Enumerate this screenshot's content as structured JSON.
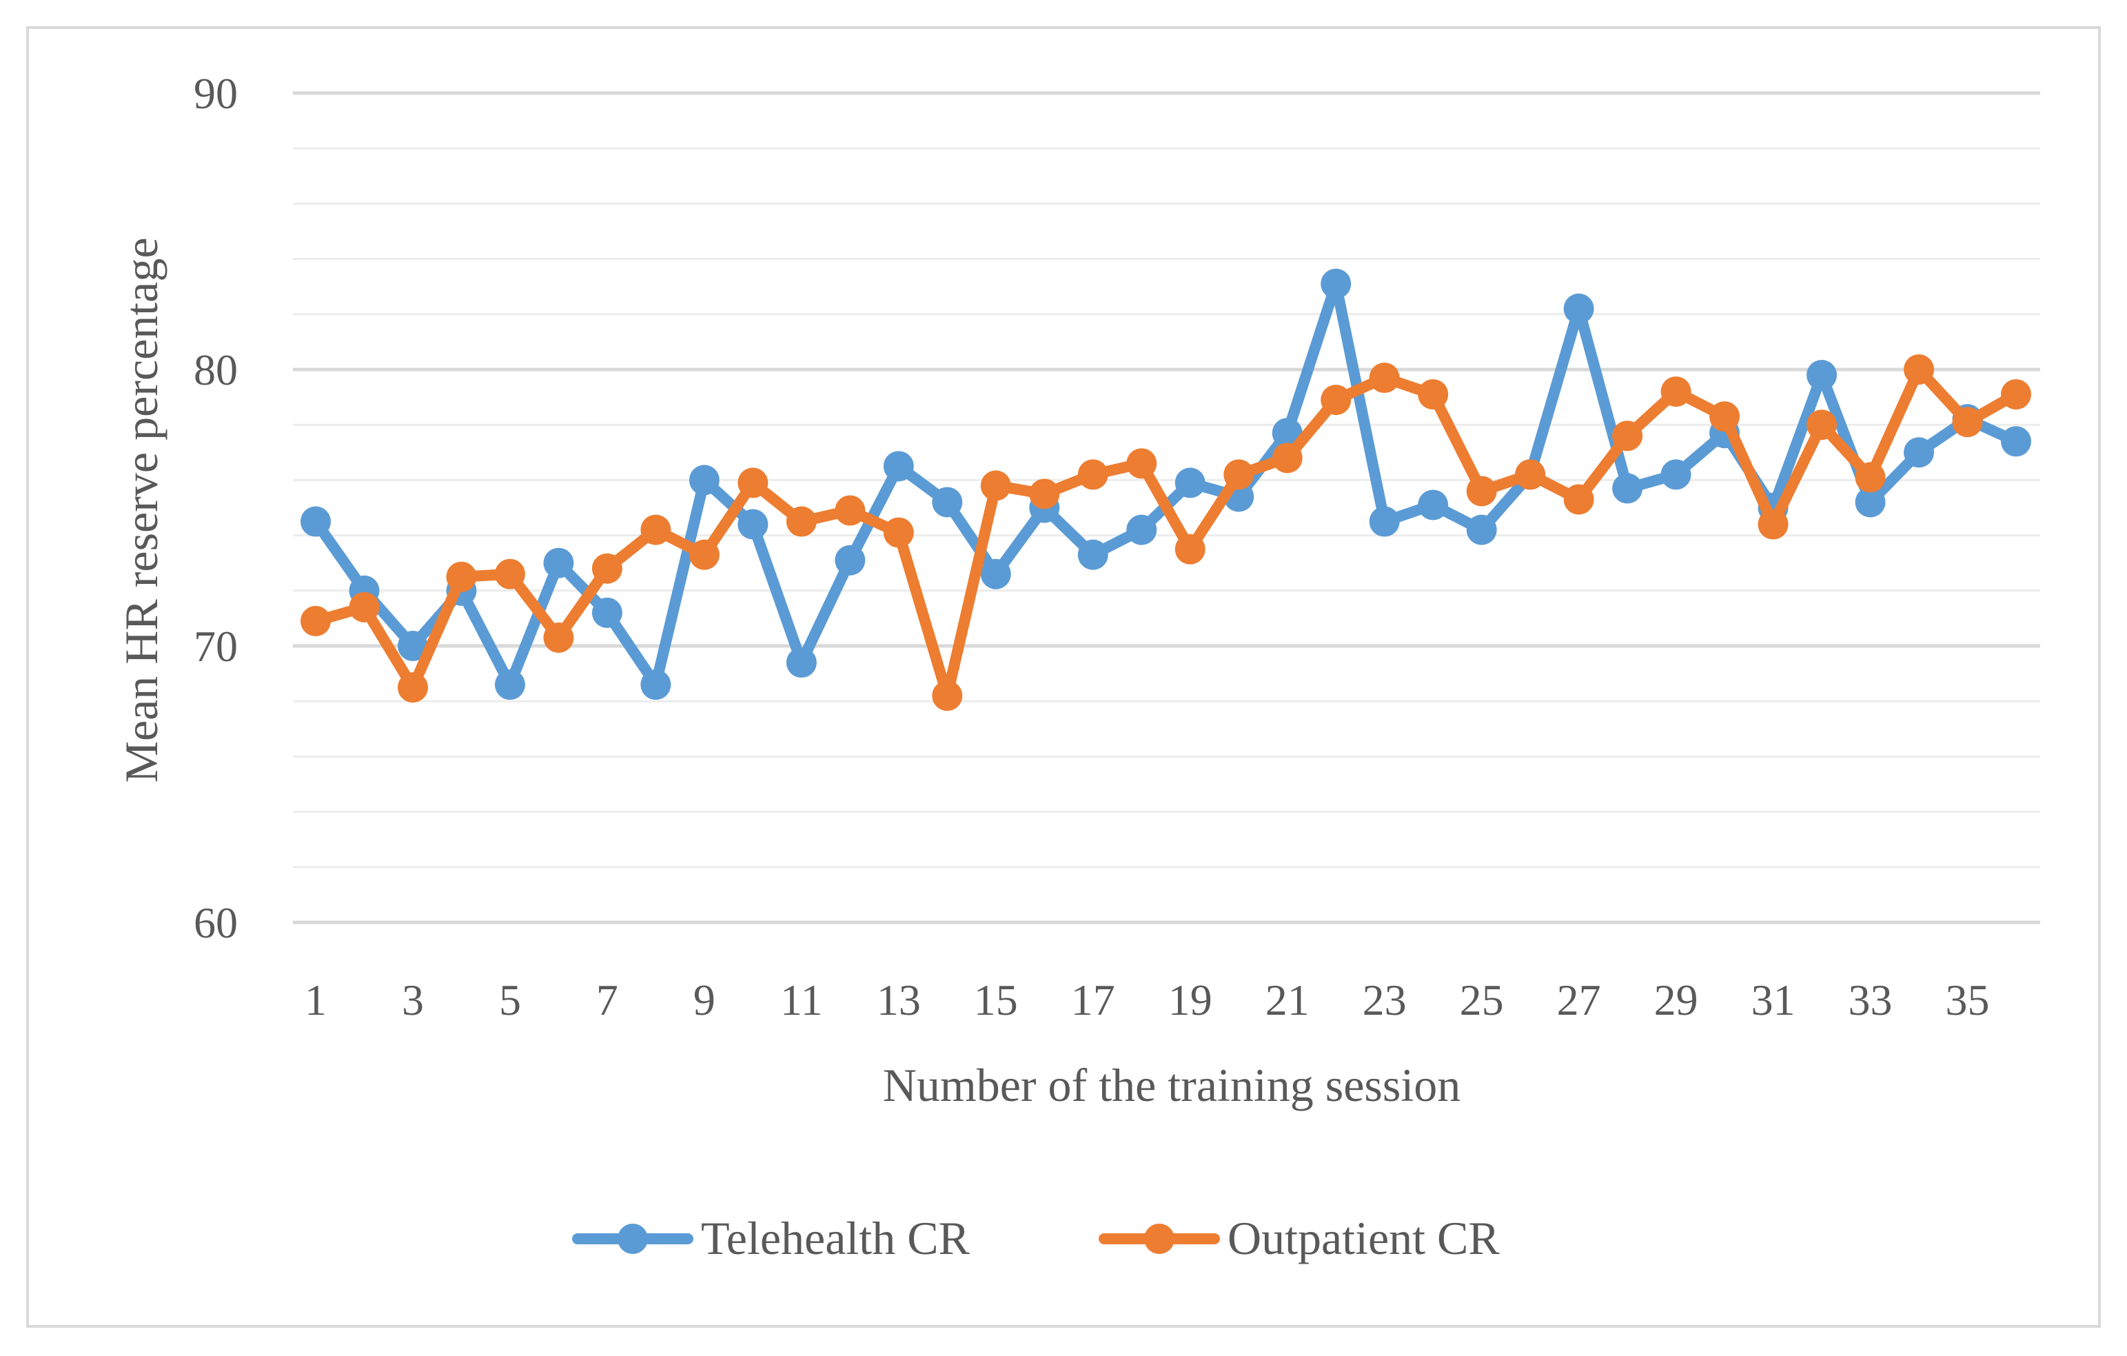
{
  "chart_data": {
    "type": "line",
    "title": "",
    "xlabel": "Number of the training session",
    "ylabel": "Mean HR reserve percentage",
    "ylim": [
      60,
      90
    ],
    "y_major_ticks": [
      60,
      70,
      80,
      90
    ],
    "y_minor_step": 2,
    "x": [
      1,
      2,
      3,
      4,
      5,
      6,
      7,
      8,
      9,
      10,
      11,
      12,
      13,
      14,
      15,
      16,
      17,
      18,
      19,
      20,
      21,
      22,
      23,
      24,
      25,
      26,
      27,
      28,
      29,
      30,
      31,
      32,
      33,
      34,
      35,
      36
    ],
    "x_tick_labels": [
      "1",
      "3",
      "5",
      "7",
      "9",
      "11",
      "13",
      "15",
      "17",
      "19",
      "21",
      "23",
      "25",
      "27",
      "29",
      "31",
      "33",
      "35"
    ],
    "legend_position": "bottom",
    "series": [
      {
        "name": "Telehealth CR",
        "color": "#5B9BD5",
        "values": [
          74.5,
          72.0,
          70.0,
          72.0,
          68.6,
          73.0,
          71.2,
          68.6,
          76.0,
          74.4,
          69.4,
          73.1,
          76.5,
          75.2,
          72.6,
          75.0,
          73.3,
          74.2,
          75.9,
          75.4,
          77.7,
          83.1,
          74.5,
          75.1,
          74.2,
          76.2,
          82.2,
          75.7,
          76.2,
          77.7,
          75.0,
          79.8,
          75.2,
          77.0,
          78.2,
          77.4
        ]
      },
      {
        "name": "Outpatient CR",
        "color": "#ED7D31",
        "values": [
          70.9,
          71.4,
          68.5,
          72.5,
          72.6,
          70.3,
          72.8,
          74.2,
          73.3,
          75.9,
          74.5,
          74.9,
          74.1,
          68.2,
          75.8,
          75.5,
          76.2,
          76.6,
          73.5,
          76.2,
          76.8,
          78.9,
          79.7,
          79.1,
          75.6,
          76.2,
          75.3,
          77.6,
          79.2,
          78.3,
          74.4,
          78.0,
          76.1,
          80.0,
          78.1,
          79.1
        ]
      }
    ]
  }
}
